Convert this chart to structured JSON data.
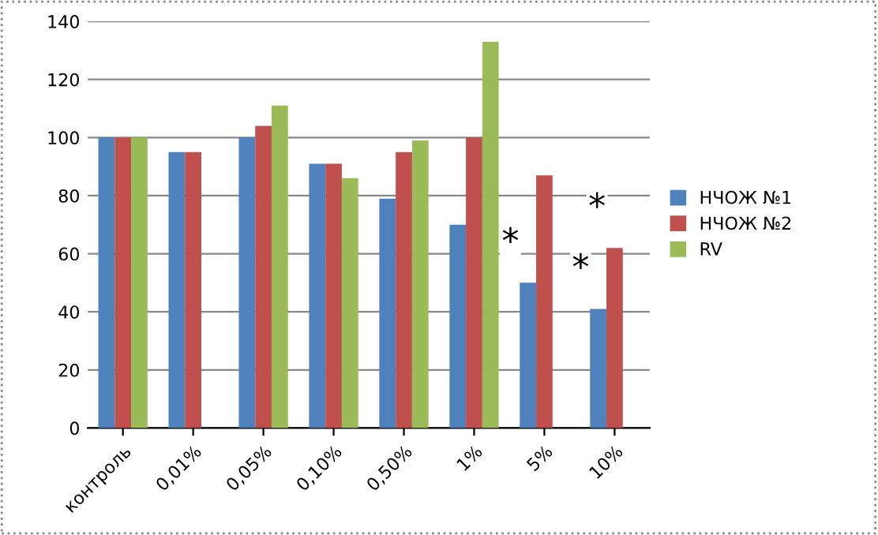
{
  "chart_data": {
    "type": "bar",
    "categories": [
      "контроль",
      "0,01%",
      "0,05%",
      "0,10%",
      "0,50%",
      "1%",
      "5%",
      "10%"
    ],
    "series": [
      {
        "name": "НЧОЖ №1",
        "color": "#4f81bd",
        "values": [
          100,
          95,
          100,
          91,
          79,
          70,
          50,
          41
        ]
      },
      {
        "name": "НЧОЖ №2",
        "color": "#c0504d",
        "values": [
          100,
          95,
          104,
          91,
          95,
          100,
          87,
          62
        ]
      },
      {
        "name": "RV",
        "color": "#9bbb59",
        "values": [
          100,
          null,
          111,
          86,
          99,
          133,
          null,
          null
        ]
      }
    ],
    "annotations": [
      "*",
      "*",
      "*"
    ],
    "ylim": [
      0,
      140
    ],
    "yticks": [
      0,
      20,
      40,
      60,
      80,
      100,
      120,
      140
    ],
    "grid": "y",
    "legend": "right"
  }
}
